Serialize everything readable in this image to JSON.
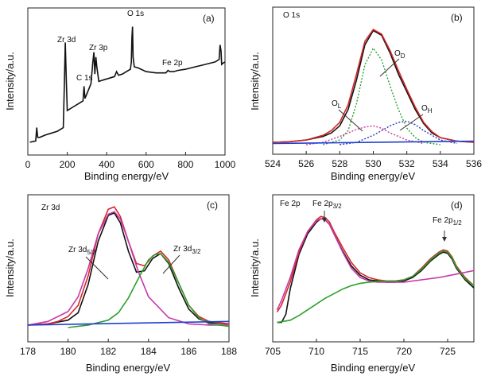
{
  "chart_data": [
    {
      "panel": "(a)",
      "type": "line",
      "xlabel": "Binding energy/eV",
      "ylabel": "Intensity/a.u.",
      "xlim": [
        0,
        1000
      ],
      "xticks": [
        0,
        200,
        400,
        600,
        800,
        1000
      ],
      "annotations": [
        {
          "text": "O 1s",
          "x": 531
        },
        {
          "text": "Zr 3d",
          "x": 182
        },
        {
          "text": "Zr 3p",
          "x": 333
        },
        {
          "text": "C 1s",
          "x": 285
        },
        {
          "text": "Fe 2p",
          "x": 711
        }
      ],
      "series": [
        {
          "color": "#111111",
          "x": [
            10,
            40,
            45,
            50,
            60,
            90,
            110,
            150,
            180,
            185,
            190,
            195,
            200,
            230,
            260,
            280,
            285,
            290,
            300,
            320,
            330,
            335,
            340,
            345,
            350,
            360,
            380,
            400,
            420,
            440,
            450,
            460,
            480,
            500,
            520,
            525,
            528,
            531,
            534,
            540,
            560,
            600,
            650,
            700,
            711,
            720,
            740,
            760,
            800,
            850,
            900,
            950,
            970,
            975,
            980,
            983,
            990,
            1000
          ],
          "y": [
            0.04,
            0.05,
            0.16,
            0.08,
            0.08,
            0.1,
            0.11,
            0.13,
            0.16,
            0.5,
            0.86,
            0.55,
            0.3,
            0.33,
            0.36,
            0.38,
            0.5,
            0.4,
            0.44,
            0.52,
            0.7,
            0.78,
            0.6,
            0.74,
            0.66,
            0.54,
            0.55,
            0.56,
            0.57,
            0.58,
            0.62,
            0.59,
            0.6,
            0.62,
            0.64,
            0.7,
            0.9,
            0.99,
            0.74,
            0.66,
            0.65,
            0.62,
            0.61,
            0.61,
            0.63,
            0.62,
            0.62,
            0.63,
            0.64,
            0.66,
            0.68,
            0.7,
            0.72,
            0.84,
            0.79,
            0.68,
            0.69,
            0.7
          ]
        }
      ]
    },
    {
      "panel": "(b)",
      "type": "line",
      "title": "O 1s",
      "xlabel": "Binding energy/eV",
      "ylabel": "Intensity/a.u.",
      "xlim": [
        524,
        536
      ],
      "xticks": [
        524,
        526,
        528,
        530,
        532,
        534,
        536
      ],
      "annotations": [
        {
          "text": "O",
          "sub": "D"
        },
        {
          "text": "O",
          "sub": "L"
        },
        {
          "text": "O",
          "sub": "H"
        }
      ],
      "series": [
        {
          "color": "#111111",
          "x": [
            524,
            525,
            526,
            527,
            527.5,
            528,
            528.5,
            529,
            529.5,
            530,
            530.5,
            531,
            531.5,
            532,
            532.5,
            533,
            533.5,
            534,
            535,
            536
          ],
          "y": [
            0.02,
            0.025,
            0.04,
            0.07,
            0.1,
            0.16,
            0.3,
            0.55,
            0.85,
            0.97,
            0.93,
            0.78,
            0.6,
            0.45,
            0.3,
            0.18,
            0.1,
            0.06,
            0.03,
            0.02
          ]
        },
        {
          "color": "#d62728",
          "x": [
            524,
            525,
            526,
            527,
            527.5,
            528,
            528.5,
            529,
            529.5,
            530,
            530.5,
            531,
            531.5,
            532,
            532.5,
            533,
            533.5,
            534,
            535,
            536
          ],
          "y": [
            0.02,
            0.025,
            0.04,
            0.08,
            0.12,
            0.19,
            0.34,
            0.6,
            0.88,
            0.98,
            0.94,
            0.8,
            0.63,
            0.47,
            0.32,
            0.19,
            0.11,
            0.06,
            0.03,
            0.02
          ]
        },
        {
          "color": "#2ca02c",
          "dash": "2,2",
          "x": [
            527,
            528,
            528.5,
            529,
            529.5,
            530,
            530.5,
            531,
            531.5,
            532,
            532.5,
            533,
            534
          ],
          "y": [
            0.0,
            0.04,
            0.12,
            0.35,
            0.68,
            0.82,
            0.72,
            0.5,
            0.3,
            0.14,
            0.06,
            0.02,
            0.0
          ]
        },
        {
          "color": "#c837ab",
          "dash": "2,2",
          "x": [
            526,
            527,
            528,
            529,
            529.5,
            530,
            530.5,
            531,
            532,
            533
          ],
          "y": [
            0.0,
            0.02,
            0.07,
            0.13,
            0.15,
            0.16,
            0.14,
            0.1,
            0.04,
            0.01
          ]
        },
        {
          "color": "#1f3cbf",
          "dash": "2,2",
          "x": [
            528,
            529,
            530,
            531,
            531.5,
            532,
            532.5,
            533,
            534,
            535
          ],
          "y": [
            0.0,
            0.02,
            0.08,
            0.16,
            0.19,
            0.2,
            0.17,
            0.12,
            0.04,
            0.01
          ]
        },
        {
          "color": "#2040d0",
          "x": [
            524,
            536
          ],
          "y": [
            0.01,
            0.03
          ]
        }
      ]
    },
    {
      "panel": "(c)",
      "type": "line",
      "title": "Zr 3d",
      "xlabel": "Binding energy/eV",
      "ylabel": "Intensity/a.u.",
      "xlim": [
        178,
        188
      ],
      "xticks": [
        178,
        180,
        182,
        184,
        186,
        188
      ],
      "annotations": [
        {
          "text": "Zr 3d",
          "sub": "5/2"
        },
        {
          "text": "Zr 3d",
          "sub": "3/2"
        }
      ],
      "series": [
        {
          "color": "#111111",
          "x": [
            178,
            179,
            180,
            180.5,
            181,
            181.5,
            182,
            182.3,
            182.6,
            183,
            183.4,
            183.8,
            184.2,
            184.6,
            185,
            185.5,
            186,
            186.5,
            187,
            188
          ],
          "y": [
            0.02,
            0.03,
            0.06,
            0.12,
            0.35,
            0.7,
            0.91,
            0.93,
            0.85,
            0.62,
            0.45,
            0.46,
            0.56,
            0.6,
            0.52,
            0.32,
            0.15,
            0.07,
            0.04,
            0.03
          ]
        },
        {
          "color": "#d62728",
          "x": [
            178,
            179,
            179.5,
            180,
            180.5,
            181,
            181.5,
            182,
            182.3,
            182.6,
            183,
            183.4,
            183.8,
            184.2,
            184.6,
            185,
            185.5,
            186,
            186.5,
            187,
            188
          ],
          "y": [
            0.02,
            0.03,
            0.05,
            0.09,
            0.18,
            0.42,
            0.76,
            0.96,
            0.98,
            0.9,
            0.7,
            0.52,
            0.5,
            0.58,
            0.62,
            0.55,
            0.36,
            0.18,
            0.09,
            0.05,
            0.03
          ]
        },
        {
          "color": "#c837ab",
          "x": [
            178,
            179,
            180,
            180.5,
            181,
            181.5,
            182,
            182.3,
            182.6,
            183,
            183.5,
            184,
            185,
            186,
            187,
            188
          ],
          "y": [
            0.02,
            0.05,
            0.13,
            0.25,
            0.48,
            0.76,
            0.92,
            0.94,
            0.88,
            0.7,
            0.45,
            0.25,
            0.08,
            0.03,
            0.02,
            0.02
          ]
        },
        {
          "color": "#2ca02c",
          "x": [
            180,
            181,
            182,
            182.5,
            183,
            183.5,
            184,
            184.3,
            184.6,
            185,
            185.5,
            186,
            186.5,
            187,
            188
          ],
          "y": [
            0.0,
            0.02,
            0.06,
            0.12,
            0.24,
            0.4,
            0.55,
            0.59,
            0.6,
            0.53,
            0.36,
            0.18,
            0.08,
            0.03,
            0.01
          ]
        },
        {
          "color": "#2040d0",
          "x": [
            178,
            188
          ],
          "y": [
            0.02,
            0.05
          ]
        }
      ]
    },
    {
      "panel": "(d)",
      "type": "line",
      "title": "Fe 2p",
      "xlabel": "Binding energy/eV",
      "ylabel": "Intensity/a.u.",
      "xlim": [
        705,
        728
      ],
      "xticks": [
        705,
        710,
        715,
        720,
        725
      ],
      "annotations": [
        {
          "text": "Fe 2p",
          "sub": "3/2"
        },
        {
          "text": "Fe 2p",
          "sub": "1/2"
        }
      ],
      "series": [
        {
          "color": "#111111",
          "x": [
            705.5,
            706,
            706.5,
            707,
            708,
            709,
            710,
            710.5,
            711,
            711.5,
            712,
            713,
            714,
            715,
            716,
            717,
            718,
            719,
            720,
            721,
            722,
            723,
            724,
            724.5,
            725,
            725.5,
            726,
            727,
            728
          ],
          "y": [
            0.03,
            0.03,
            0.1,
            0.32,
            0.62,
            0.8,
            0.9,
            0.93,
            0.92,
            0.88,
            0.8,
            0.65,
            0.52,
            0.44,
            0.4,
            0.39,
            0.38,
            0.38,
            0.39,
            0.42,
            0.48,
            0.56,
            0.62,
            0.64,
            0.63,
            0.58,
            0.5,
            0.4,
            0.33
          ]
        },
        {
          "color": "#d62728",
          "x": [
            705.5,
            706,
            707,
            708,
            709,
            710,
            710.5,
            711,
            711.5,
            712,
            713,
            714,
            715,
            716,
            717,
            718,
            719,
            720,
            721,
            722,
            723,
            724,
            724.5,
            725,
            725.5,
            726,
            727,
            728
          ],
          "y": [
            0.12,
            0.18,
            0.38,
            0.64,
            0.82,
            0.92,
            0.95,
            0.94,
            0.9,
            0.82,
            0.68,
            0.55,
            0.46,
            0.42,
            0.4,
            0.39,
            0.39,
            0.4,
            0.43,
            0.5,
            0.58,
            0.64,
            0.66,
            0.65,
            0.6,
            0.52,
            0.42,
            0.35
          ]
        },
        {
          "color": "#c837ab",
          "x": [
            705.5,
            706,
            707,
            708,
            709,
            710,
            710.5,
            711,
            711.5,
            712,
            713,
            714,
            715,
            716,
            717,
            718,
            720,
            722,
            724,
            726,
            728
          ],
          "y": [
            0.14,
            0.22,
            0.42,
            0.66,
            0.82,
            0.91,
            0.93,
            0.92,
            0.88,
            0.8,
            0.64,
            0.5,
            0.42,
            0.39,
            0.38,
            0.38,
            0.38,
            0.4,
            0.42,
            0.45,
            0.48
          ]
        },
        {
          "color": "#2ca02c",
          "x": [
            705.5,
            707,
            708,
            709,
            710,
            711,
            712,
            713,
            714,
            715,
            716,
            717,
            718,
            719,
            720,
            721,
            722,
            723,
            724,
            724.5,
            725,
            725.5,
            726,
            727,
            728
          ],
          "y": [
            0.03,
            0.05,
            0.09,
            0.14,
            0.19,
            0.24,
            0.28,
            0.32,
            0.35,
            0.37,
            0.38,
            0.385,
            0.39,
            0.39,
            0.4,
            0.43,
            0.49,
            0.57,
            0.63,
            0.65,
            0.64,
            0.59,
            0.51,
            0.41,
            0.35
          ]
        }
      ]
    }
  ]
}
